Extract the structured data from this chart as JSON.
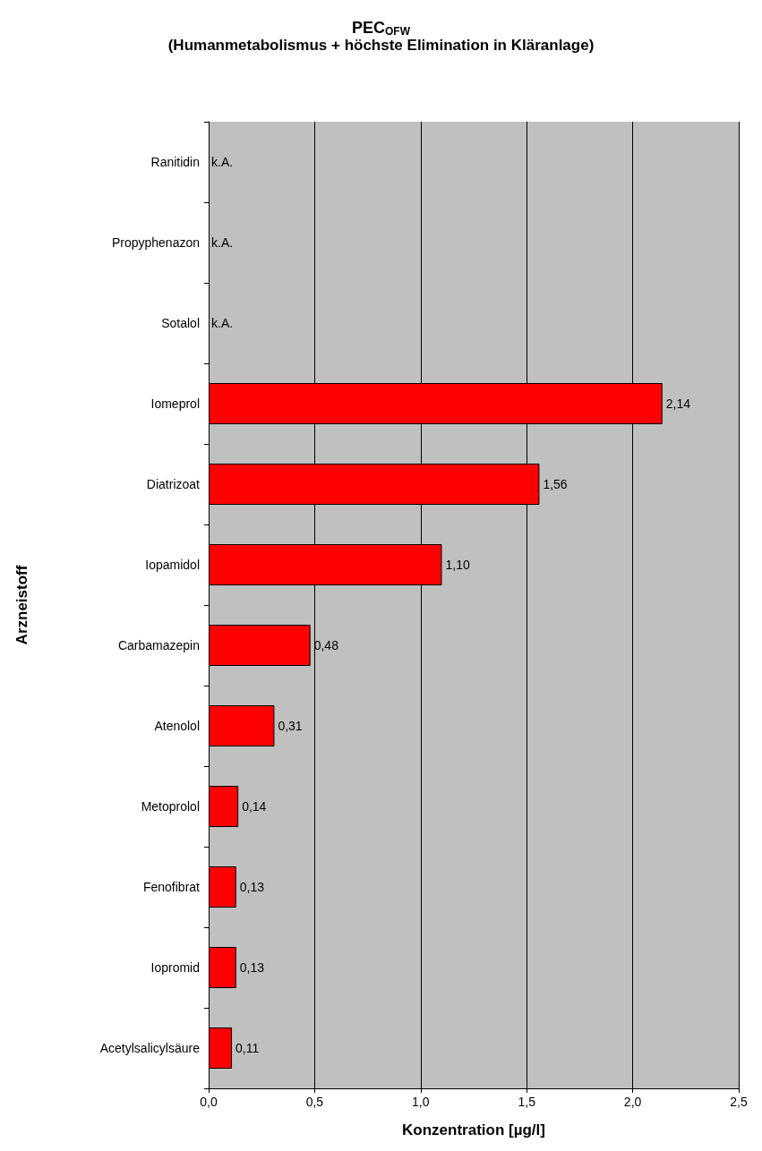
{
  "chart_data": {
    "type": "bar",
    "orientation": "horizontal",
    "title": "PEC$_{OFW}$",
    "subtitle": "(Humanmetabolismus + höchste Elimination in Kläranlage)",
    "xlabel": "Konzentration [µg/l]",
    "ylabel": "Arzneistoff",
    "categories": [
      "Ranitidin",
      "Propyphenazon",
      "Sotalol",
      "Iomeprol",
      "Diatrizoat",
      "Iopamidol",
      "Carbamazepin",
      "Atenolol",
      "Metoprolol",
      "Fenofibrat",
      "Iopromid",
      "Acetylsalicylsäure"
    ],
    "values": [
      null,
      null,
      null,
      2.14,
      1.56,
      1.1,
      0.48,
      0.31,
      0.14,
      0.13,
      0.13,
      0.11
    ],
    "value_labels": [
      "k.A.",
      "k.A.",
      "k.A.",
      "2,14",
      "1,56",
      "1,10",
      "0,48",
      "0,31",
      "0,14",
      "0,13",
      "0,13",
      "0,11"
    ],
    "color": "#ff0000",
    "xlim": [
      0,
      2.5
    ],
    "xticks": [
      {
        "value": 0,
        "label": "0,0"
      },
      {
        "value": 0.5,
        "label": "0,5"
      },
      {
        "value": 1,
        "label": "1,0"
      },
      {
        "value": 1.5,
        "label": "1,5"
      },
      {
        "value": 2,
        "label": "2,0"
      },
      {
        "value": 2.5,
        "label": "2,5"
      }
    ],
    "grid": "x"
  }
}
